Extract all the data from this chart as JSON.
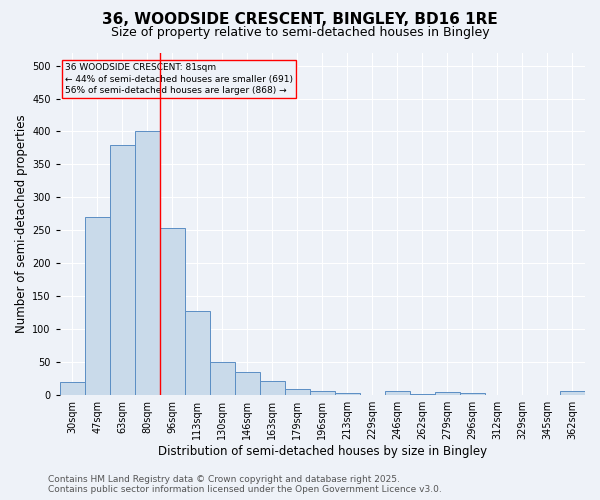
{
  "title": "36, WOODSIDE CRESCENT, BINGLEY, BD16 1RE",
  "subtitle": "Size of property relative to semi-detached houses in Bingley",
  "xlabel": "Distribution of semi-detached houses by size in Bingley",
  "ylabel": "Number of semi-detached properties",
  "categories": [
    "30sqm",
    "47sqm",
    "63sqm",
    "80sqm",
    "96sqm",
    "113sqm",
    "130sqm",
    "146sqm",
    "163sqm",
    "179sqm",
    "196sqm",
    "213sqm",
    "229sqm",
    "246sqm",
    "262sqm",
    "279sqm",
    "296sqm",
    "312sqm",
    "329sqm",
    "345sqm",
    "362sqm"
  ],
  "values": [
    20,
    270,
    380,
    400,
    253,
    127,
    50,
    35,
    21,
    9,
    5,
    2,
    0,
    6,
    1,
    4,
    2,
    0,
    0,
    0,
    5
  ],
  "bar_color": "#c9daea",
  "bar_edge_color": "#5b8ec4",
  "red_line_x": 3.5,
  "annotation_label": "36 WOODSIDE CRESCENT: 81sqm",
  "annotation_line1": "← 44% of semi-detached houses are smaller (691)",
  "annotation_line2": "56% of semi-detached houses are larger (868) →",
  "ylim": [
    0,
    520
  ],
  "yticks": [
    0,
    50,
    100,
    150,
    200,
    250,
    300,
    350,
    400,
    450,
    500
  ],
  "footer1": "Contains HM Land Registry data © Crown copyright and database right 2025.",
  "footer2": "Contains public sector information licensed under the Open Government Licence v3.0.",
  "background_color": "#eef2f8",
  "plot_bg_color": "#eef2f8",
  "grid_color": "#ffffff",
  "title_fontsize": 11,
  "subtitle_fontsize": 9,
  "axis_label_fontsize": 8.5,
  "tick_fontsize": 7,
  "footer_fontsize": 6.5
}
